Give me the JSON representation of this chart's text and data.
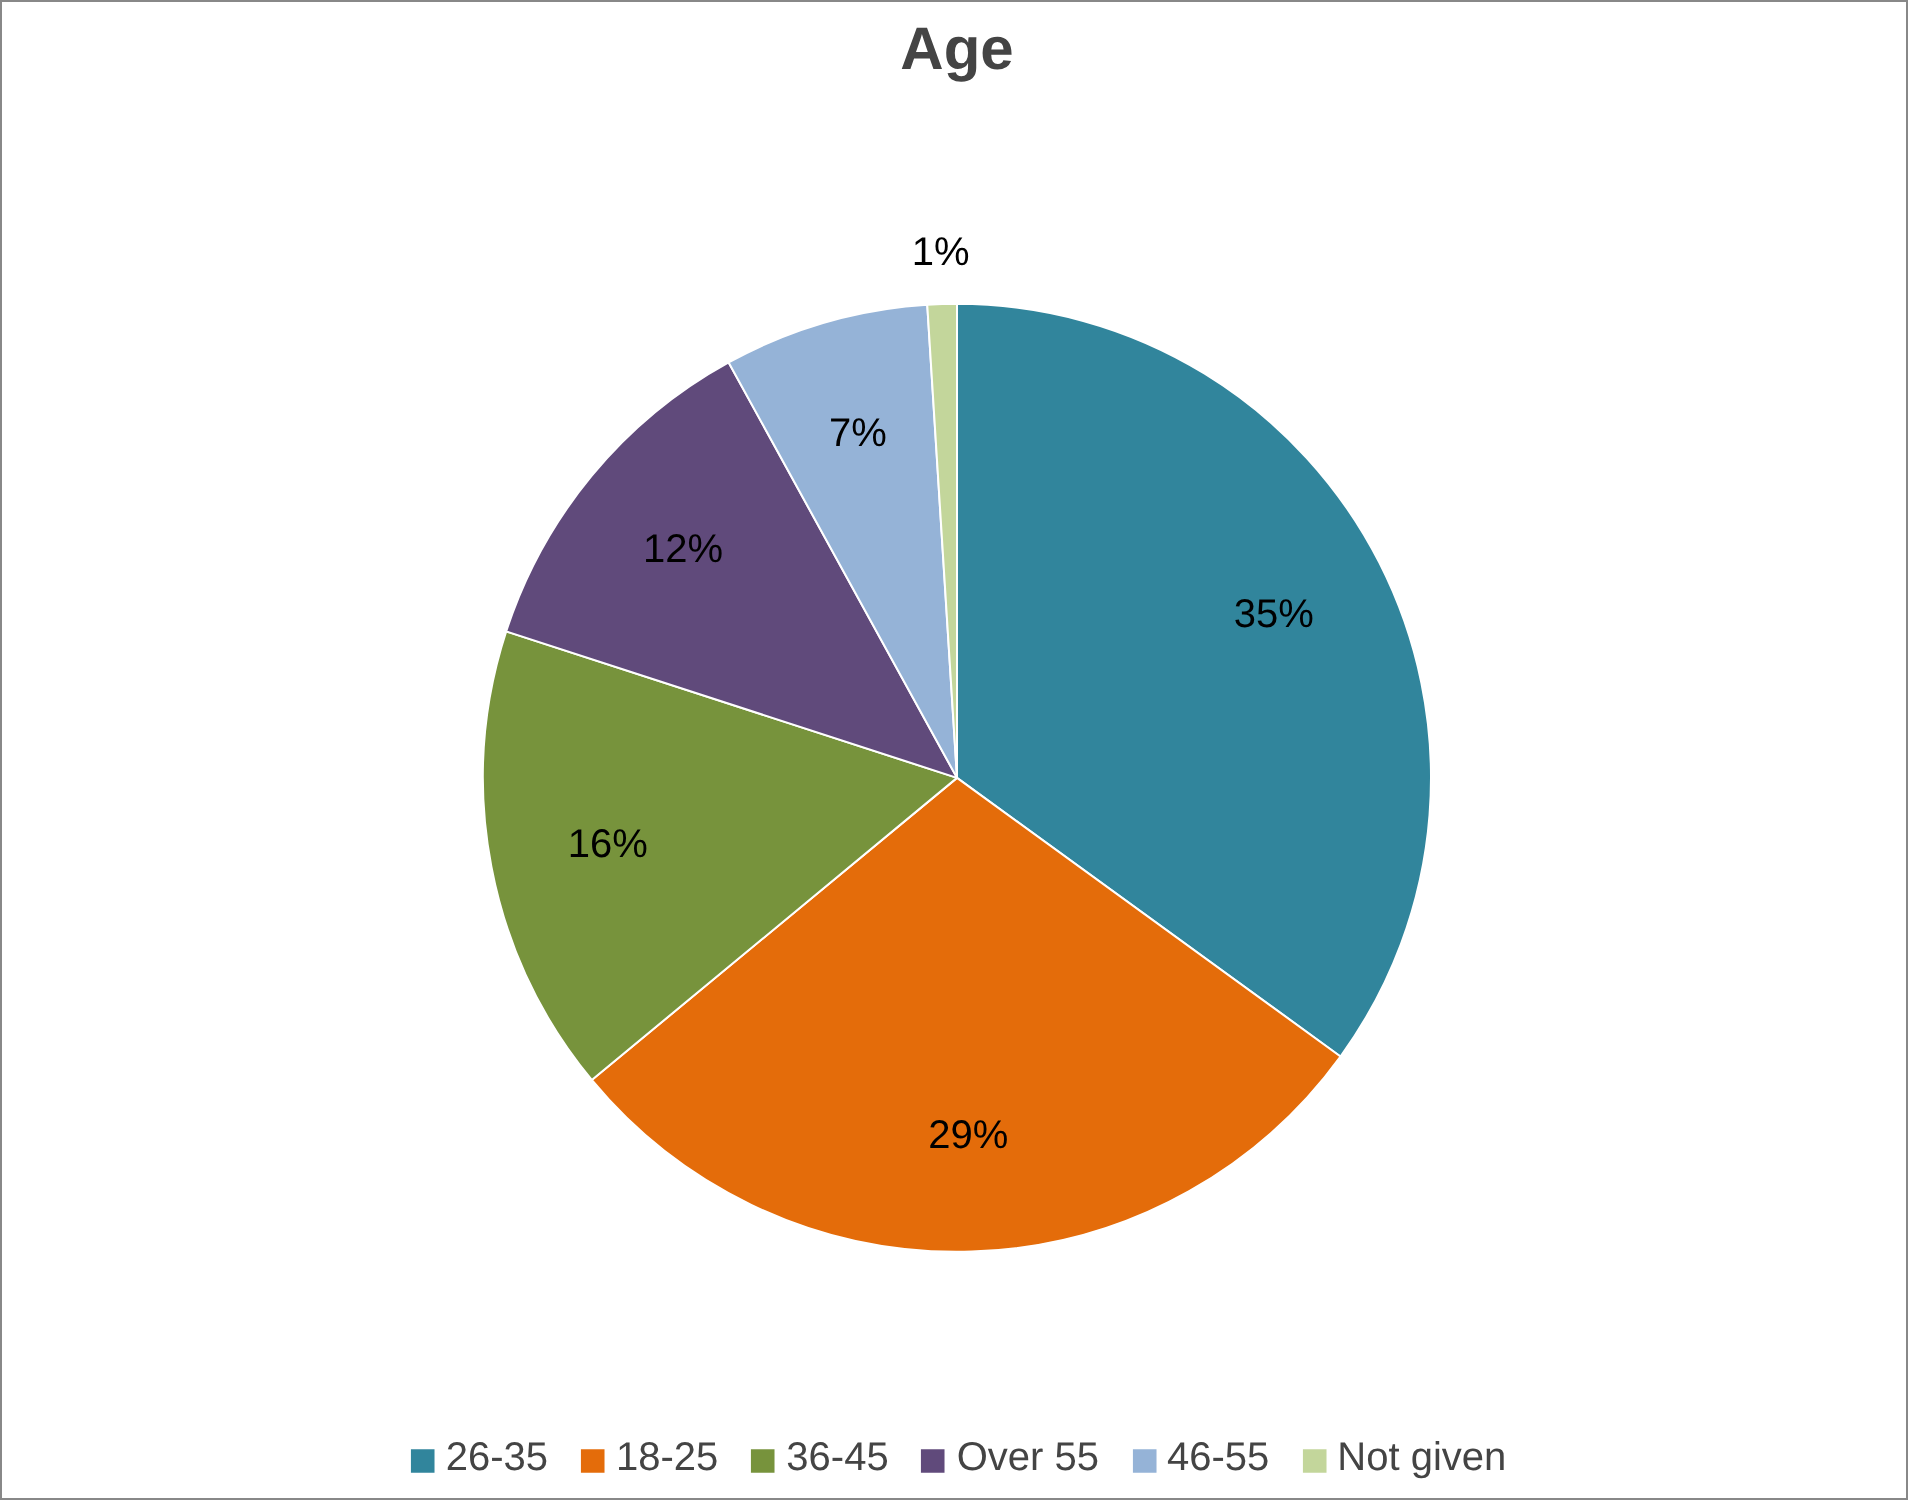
{
  "chart_data": {
    "type": "pie",
    "title": "Age",
    "categories": [
      "26-35",
      "18-25",
      "36-45",
      "Over 55",
      "46-55",
      "Not given"
    ],
    "values": [
      35,
      29,
      16,
      12,
      7,
      1
    ],
    "colors": [
      "#31859c",
      "#e46c0a",
      "#77933c",
      "#604a7b",
      "#95b3d7",
      "#c3d69b"
    ],
    "value_labels": [
      "35%",
      "29%",
      "16%",
      "12%",
      "7%",
      "1%"
    ],
    "legend": "bottom"
  }
}
